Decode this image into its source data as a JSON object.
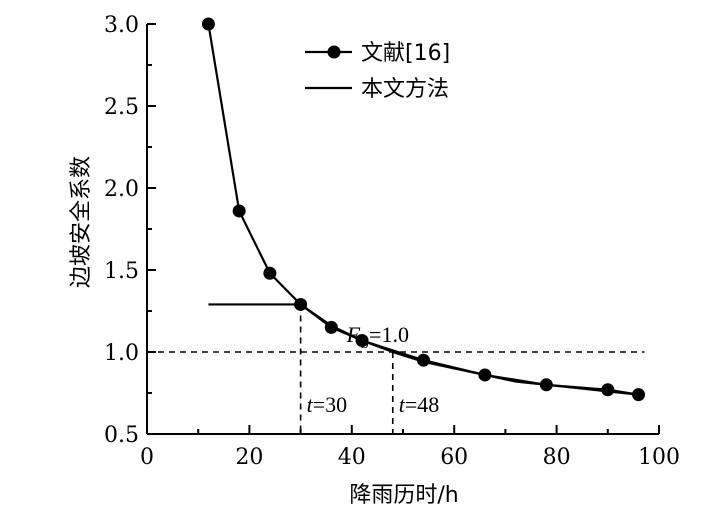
{
  "chart_data": {
    "type": "line",
    "xlabel": "降雨历时/h",
    "ylabel": "边坡安全系数",
    "xlim": [
      0,
      100
    ],
    "ylim": [
      0.5,
      3.0
    ],
    "xticks": [
      0,
      20,
      40,
      60,
      80,
      100
    ],
    "yticks": [
      0.5,
      1.0,
      1.5,
      2.0,
      2.5,
      3.0
    ],
    "legend_position": "top-right",
    "grid": false,
    "series": [
      {
        "name": "文献[16]",
        "style": "line-with-markers",
        "x": [
          12,
          18,
          24,
          30,
          36,
          42,
          54,
          66,
          78,
          90,
          96
        ],
        "y": [
          3.0,
          1.86,
          1.48,
          1.29,
          1.15,
          1.07,
          0.95,
          0.86,
          0.8,
          0.77,
          0.74
        ]
      },
      {
        "name": "本文方法",
        "style": "line",
        "x": [
          12,
          24,
          30,
          36,
          42,
          48,
          54,
          60,
          66,
          72,
          78,
          84,
          90,
          96
        ],
        "y": [
          1.29,
          1.29,
          1.29,
          1.16,
          1.07,
          1.0,
          0.94,
          0.9,
          0.86,
          0.82,
          0.8,
          0.78,
          0.76,
          0.74
        ]
      }
    ],
    "annotations": {
      "fs_line": {
        "y": 1.0,
        "x_start": 0,
        "x_end": 96,
        "label_F": "F",
        "label_sub": "S",
        "label_rest": "=1.0",
        "label_x": 39,
        "label_y": 1.06
      },
      "t1": {
        "x": 30,
        "y_top": 1.29,
        "label_italic": "t",
        "label_rest": "=30"
      },
      "t2": {
        "x": 48,
        "y_top": 1.0,
        "label_italic": "t",
        "label_rest": "=48"
      }
    }
  }
}
